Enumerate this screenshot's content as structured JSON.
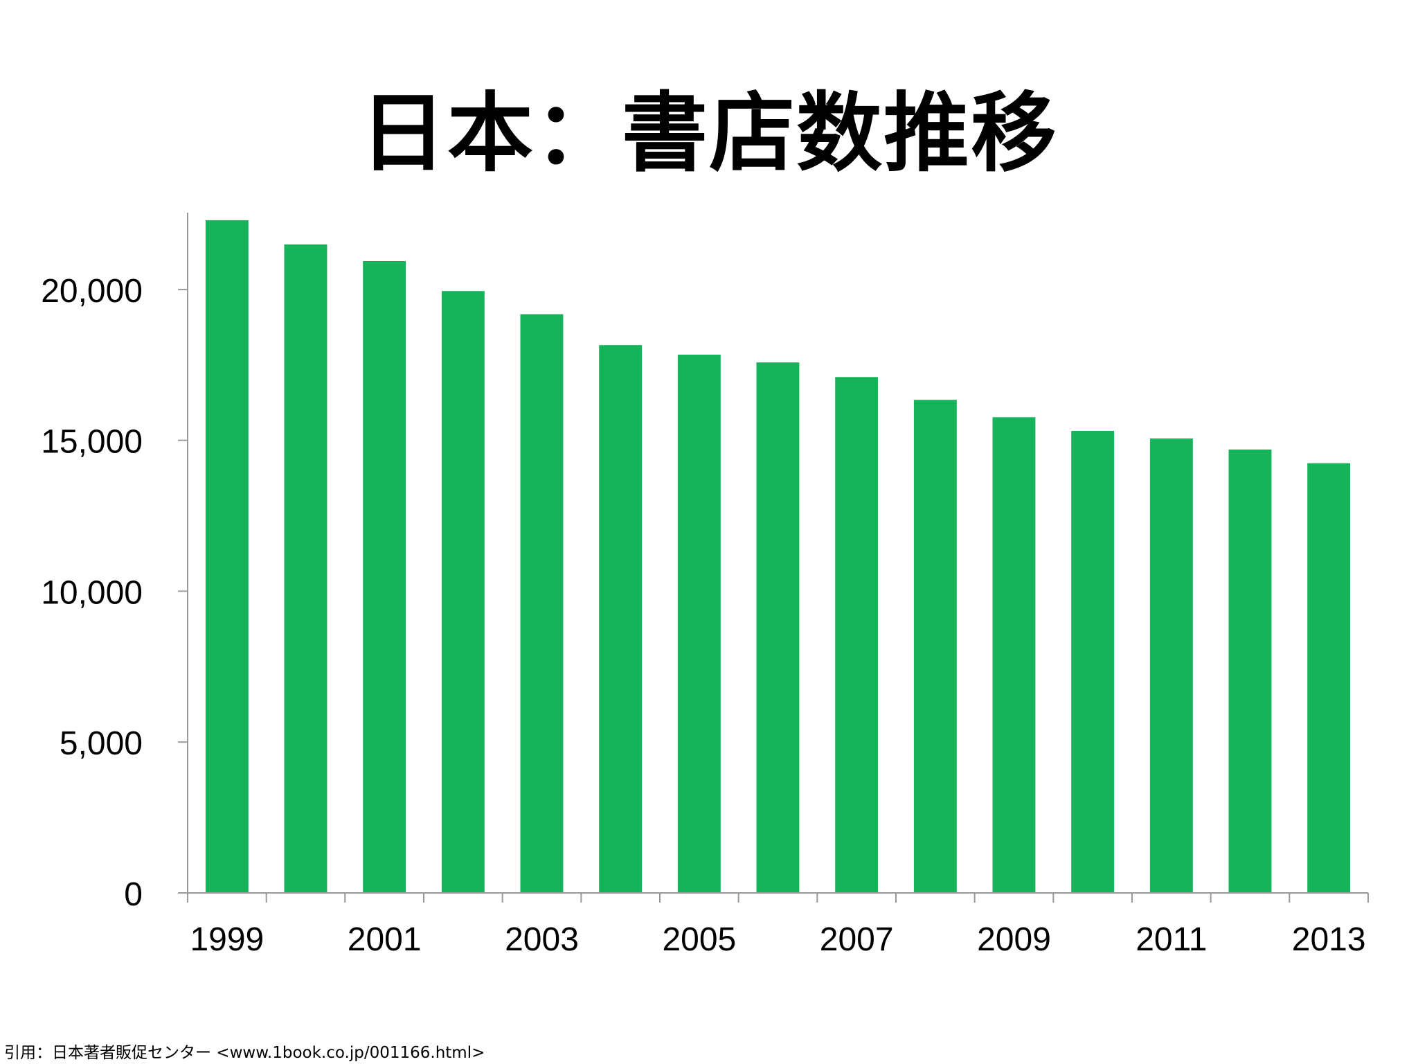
{
  "slide": {
    "title": "日本：書店数推移",
    "source_note": "引用：日本著者販促センター <www.1book.co.jp/001166.html>"
  },
  "colors": {
    "bar": "#17b35a",
    "axis": "#999999",
    "text": "#000000",
    "background": "#ffffff"
  },
  "chart_data": {
    "type": "bar",
    "title": "日本：書店数推移",
    "xlabel": "",
    "ylabel": "",
    "categories": [
      "1999",
      "2000",
      "2001",
      "2002",
      "2003",
      "2004",
      "2005",
      "2006",
      "2007",
      "2008",
      "2009",
      "2010",
      "2011",
      "2012",
      "2013"
    ],
    "category_tick_labels": [
      "1999",
      "",
      "2001",
      "",
      "2003",
      "",
      "2005",
      "",
      "2007",
      "",
      "2009",
      "",
      "2011",
      "",
      "2013"
    ],
    "values": [
      22296,
      21495,
      20939,
      19946,
      19179,
      18156,
      17839,
      17582,
      17098,
      16342,
      15765,
      15314,
      15061,
      14696,
      14241
    ],
    "ylim": [
      0,
      22500
    ],
    "yticks": [
      0,
      5000,
      10000,
      15000,
      20000
    ],
    "ytick_labels": [
      "0",
      "5,000",
      "10,000",
      "15,000",
      "20,000"
    ],
    "grid": false,
    "legend": "none"
  }
}
